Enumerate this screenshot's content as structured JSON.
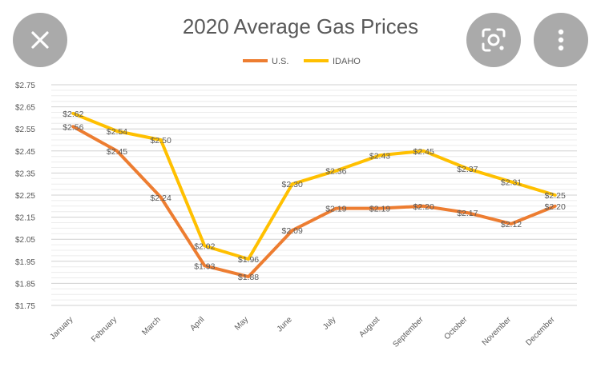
{
  "overlay": {
    "close_icon": "close-icon",
    "lens_icon": "visual-search-icon",
    "more_icon": "more-vert-icon",
    "icon_color": "#ffffff"
  },
  "chart_data": {
    "type": "line",
    "title": "2020 Average Gas Prices",
    "categories": [
      "January",
      "February",
      "March",
      "April",
      "May",
      "June",
      "July",
      "August",
      "September",
      "October",
      "November",
      "December"
    ],
    "series": [
      {
        "name": "U.S.",
        "color": "#ED7D31",
        "values": [
          2.56,
          2.45,
          2.24,
          1.93,
          1.88,
          2.09,
          2.19,
          2.19,
          2.2,
          2.17,
          2.12,
          2.2
        ],
        "labels": [
          "$2.56",
          "$2.45",
          "$2.24",
          "$1.93",
          "$1.88",
          "$2.09",
          "$2.19",
          "$2.19",
          "$2.20",
          "$2.17",
          "$2.12",
          "$2.20"
        ]
      },
      {
        "name": "IDAHO",
        "color": "#FFC000",
        "values": [
          2.62,
          2.54,
          2.5,
          2.02,
          1.96,
          2.3,
          2.36,
          2.43,
          2.45,
          2.37,
          2.31,
          2.25
        ],
        "labels": [
          "$2.62",
          "$2.54",
          "$2.50",
          "$2.02",
          "$1.96",
          "$2.30",
          "$2.36",
          "$2.43",
          "$2.45",
          "$2.37",
          "$2.31",
          "$2.25"
        ]
      }
    ],
    "ylim": [
      1.75,
      2.75
    ],
    "y_ticks": [
      1.75,
      1.85,
      1.95,
      2.05,
      2.15,
      2.25,
      2.35,
      2.45,
      2.55,
      2.65,
      2.75
    ],
    "y_tick_labels": [
      "$1.75",
      "$1.85",
      "$1.95",
      "$2.05",
      "$2.15",
      "$2.25",
      "$2.35",
      "$2.45",
      "$2.55",
      "$2.65",
      "$2.75"
    ],
    "grid": true,
    "legend_position": "top"
  }
}
